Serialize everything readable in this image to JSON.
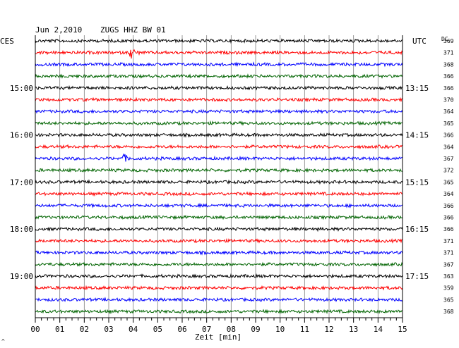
{
  "header": {
    "date": "Jun 2,2010",
    "station": "ZUGS HHZ BW 01",
    "left_zone": "CES",
    "right_zone": "UTC",
    "dc_label": "DC"
  },
  "footer": {
    "xlabel": "Zeit [min]",
    "corner_mark": "^"
  },
  "colors": {
    "trace_cycle": [
      "#000000",
      "#ff0000",
      "#0000ff",
      "#006400"
    ],
    "grid": "#808080",
    "frame": "#000000"
  },
  "chart_data": {
    "type": "line",
    "title": "Jun 2,2010   ZUGS HHZ BW 01",
    "xlabel": "Zeit [min]",
    "xlim": [
      0,
      15
    ],
    "x_ticks": [
      "00",
      "01",
      "02",
      "03",
      "04",
      "05",
      "06",
      "07",
      "08",
      "09",
      "10",
      "11",
      "12",
      "13",
      "14",
      "15"
    ],
    "rows": 24,
    "row_minutes": 15,
    "left_time_labels": [
      {
        "row": 4,
        "text": "15:00"
      },
      {
        "row": 8,
        "text": "16:00"
      },
      {
        "row": 12,
        "text": "17:00"
      },
      {
        "row": 16,
        "text": "18:00"
      },
      {
        "row": 20,
        "text": "19:00"
      }
    ],
    "right_time_labels": [
      {
        "row": 4,
        "text": "13:15"
      },
      {
        "row": 8,
        "text": "14:15"
      },
      {
        "row": 12,
        "text": "15:15"
      },
      {
        "row": 16,
        "text": "16:15"
      },
      {
        "row": 20,
        "text": "17:15"
      }
    ],
    "dc_offsets": [
      369,
      371,
      368,
      366,
      366,
      370,
      364,
      365,
      366,
      364,
      367,
      372,
      365,
      364,
      366,
      366,
      366,
      371,
      371,
      367,
      363,
      359,
      365,
      368
    ],
    "events": [
      {
        "row": 1,
        "minute": 3.9,
        "amplitude": 1.0
      },
      {
        "row": 10,
        "minute": 3.6,
        "amplitude": 0.7
      }
    ]
  }
}
